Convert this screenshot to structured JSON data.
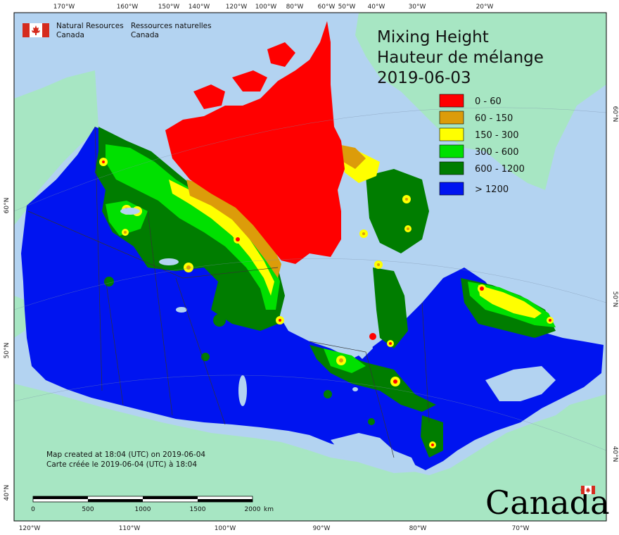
{
  "colors": {
    "ocean": "#b3d3f1",
    "land_other": "#a7e6c3",
    "red": "#ff0000",
    "orange": "#dc9c0a",
    "yellow": "#ffff00",
    "lightgreen": "#00e000",
    "darkgreen": "#007d00",
    "blue": "#0014f0"
  },
  "map": {
    "top_ticks": [
      "170°W",
      "160°W",
      "150°W",
      "140°W",
      "120°W",
      "100°W",
      "80°W",
      "60°W",
      "50°W",
      "40°W",
      "30°W",
      "20°W"
    ],
    "bottom_ticks": [
      "120°W",
      "110°W",
      "100°W",
      "90°W",
      "80°W",
      "70°W"
    ],
    "left_ticks": [
      "60°N",
      "50°N",
      "40°N"
    ],
    "right_ticks": [
      "60°N",
      "50°N",
      "40°N"
    ]
  },
  "header": {
    "dept_en_1": "Natural Resources",
    "dept_en_2": "Canada",
    "dept_fr_1": "Ressources naturelles",
    "dept_fr_2": "Canada"
  },
  "title": {
    "line1": "Mixing Height",
    "line2": "Hauteur de mélange",
    "date": "2019-06-03"
  },
  "legend": {
    "items": [
      {
        "label": "0 - 60",
        "color": "#ff0000"
      },
      {
        "label": "60 - 150",
        "color": "#dc9c0a"
      },
      {
        "label": "150 - 300",
        "color": "#ffff00"
      },
      {
        "label": "300 - 600",
        "color": "#00e000"
      },
      {
        "label": "600 - 1200",
        "color": "#007d00"
      },
      {
        "label": "> 1200",
        "color": "#0014f0"
      }
    ]
  },
  "credits": {
    "en": "Map created at 18:04 (UTC) on 2019-06-04",
    "fr": "Carte créée le 2019-06-04 (UTC) à 18:04"
  },
  "scalebar": {
    "labels": [
      "0",
      "500",
      "1000",
      "1500",
      "2000"
    ],
    "unit": "km"
  },
  "wordmark": "Canada"
}
